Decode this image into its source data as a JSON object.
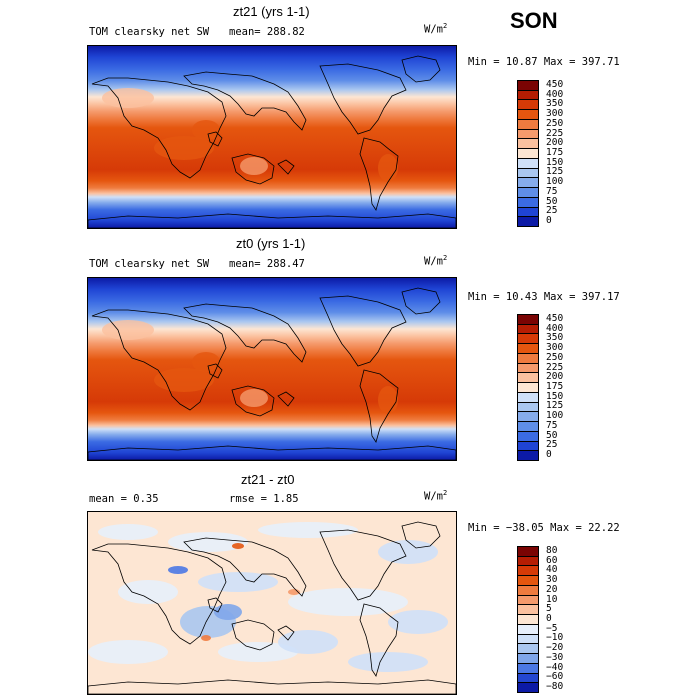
{
  "season": "SON",
  "panels": [
    {
      "title": "zt21 (yrs 1-1)",
      "left_label": "TOM clearsky net SW",
      "mid_label": "mean= 288.82",
      "units": "W/m",
      "units_exp": "2",
      "minmax": "Min =  10.87 Max = 397.71",
      "levels": [
        "450",
        "400",
        "350",
        "300",
        "250",
        "225",
        "200",
        "175",
        "150",
        "125",
        "100",
        "75",
        "50",
        "25",
        "0"
      ],
      "colors": [
        "#7a0403",
        "#b51d03",
        "#d63a07",
        "#e5560f",
        "#ef7b3f",
        "#f59a6c",
        "#fbc19f",
        "#fde6d3",
        "#cfe0f8",
        "#aac7f0",
        "#86acec",
        "#5f8ee8",
        "#3b6be3",
        "#1f44d4",
        "#0c1aa6"
      ]
    },
    {
      "title": "zt0 (yrs 1-1)",
      "left_label": "TOM clearsky net SW",
      "mid_label": "mean= 288.47",
      "units": "W/m",
      "units_exp": "2",
      "minmax": "Min =  10.43 Max = 397.17",
      "levels": [
        "450",
        "400",
        "350",
        "300",
        "250",
        "225",
        "200",
        "175",
        "150",
        "125",
        "100",
        "75",
        "50",
        "25",
        "0"
      ],
      "colors": [
        "#7a0403",
        "#b51d03",
        "#d63a07",
        "#e5560f",
        "#ef7b3f",
        "#f59a6c",
        "#fbc19f",
        "#fde6d3",
        "#cfe0f8",
        "#aac7f0",
        "#86acec",
        "#5f8ee8",
        "#3b6be3",
        "#1f44d4",
        "#0c1aa6"
      ]
    },
    {
      "title": "zt21 - zt0",
      "left_label": "mean =    0.35",
      "mid_label": "rmse =    1.85",
      "units": "W/m",
      "units_exp": "2",
      "minmax": "Min = −38.05 Max =  22.22",
      "levels": [
        "80",
        "60",
        "40",
        "30",
        "20",
        "10",
        "5",
        "0",
        "−5",
        "−10",
        "−20",
        "−30",
        "−40",
        "−60",
        "−80"
      ],
      "colors": [
        "#7a0403",
        "#b51d03",
        "#d63a07",
        "#e5560f",
        "#ef7b3f",
        "#f59a6c",
        "#fbc19f",
        "#fde6d3",
        "#e7effb",
        "#cfe0f8",
        "#aac7f0",
        "#7fa6ea",
        "#4b78e4",
        "#2447d0",
        "#0c1aa6"
      ]
    }
  ]
}
